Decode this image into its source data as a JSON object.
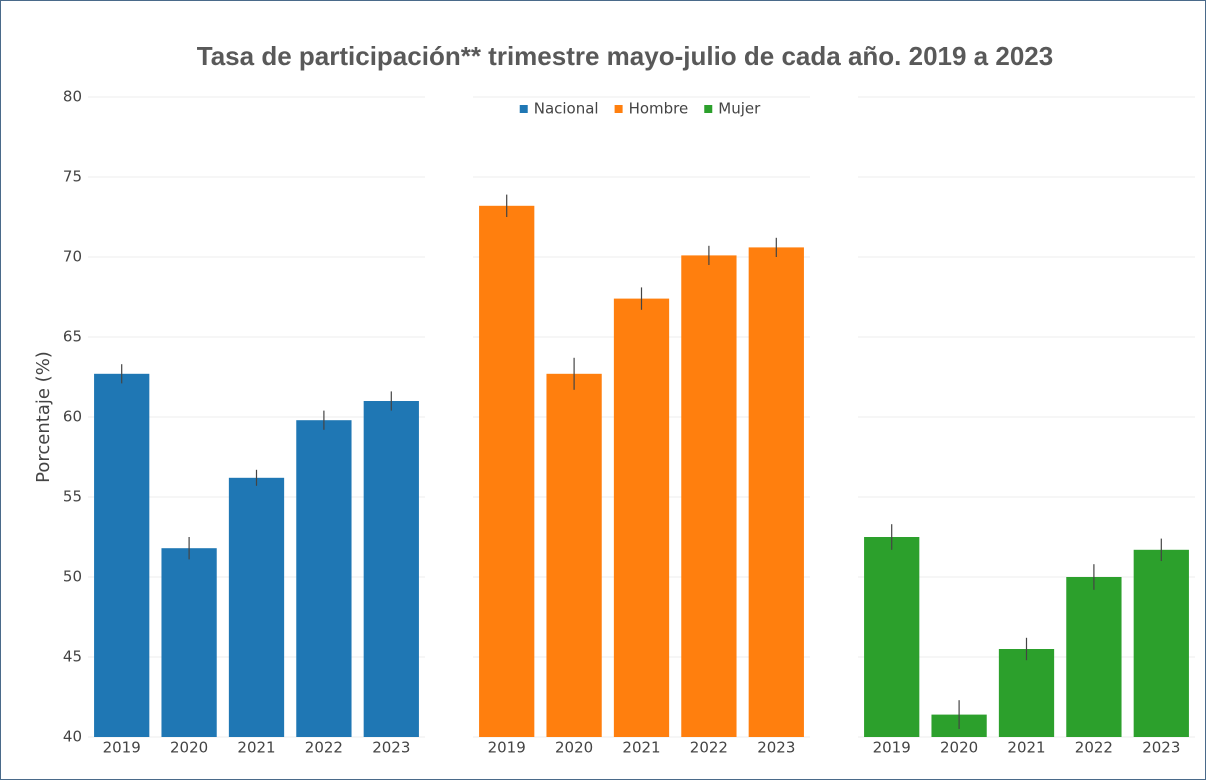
{
  "chart_data": {
    "type": "bar",
    "title": "Tasa de participación** trimestre mayo-julio de cada año. 2019 a 2023",
    "ylabel": "Porcentaje (%)",
    "categories": [
      "2019",
      "2020",
      "2021",
      "2022",
      "2023"
    ],
    "series": [
      {
        "name": "Nacional",
        "color": "#1f77b4",
        "values": [
          62.7,
          51.8,
          56.2,
          59.8,
          61.0
        ],
        "errors": [
          0.6,
          0.7,
          0.5,
          0.6,
          0.6
        ]
      },
      {
        "name": "Hombre",
        "color": "#ff7f0e",
        "values": [
          73.2,
          62.7,
          67.4,
          70.1,
          70.6
        ],
        "errors": [
          0.7,
          1.0,
          0.7,
          0.6,
          0.6
        ]
      },
      {
        "name": "Mujer",
        "color": "#2ca02c",
        "values": [
          52.5,
          41.4,
          45.5,
          50.0,
          51.7
        ],
        "errors": [
          0.8,
          0.9,
          0.7,
          0.8,
          0.7
        ]
      }
    ],
    "ylim": [
      40,
      80
    ],
    "yticks": [
      40,
      45,
      50,
      55,
      60,
      65,
      70,
      75,
      80
    ],
    "grid": true
  }
}
